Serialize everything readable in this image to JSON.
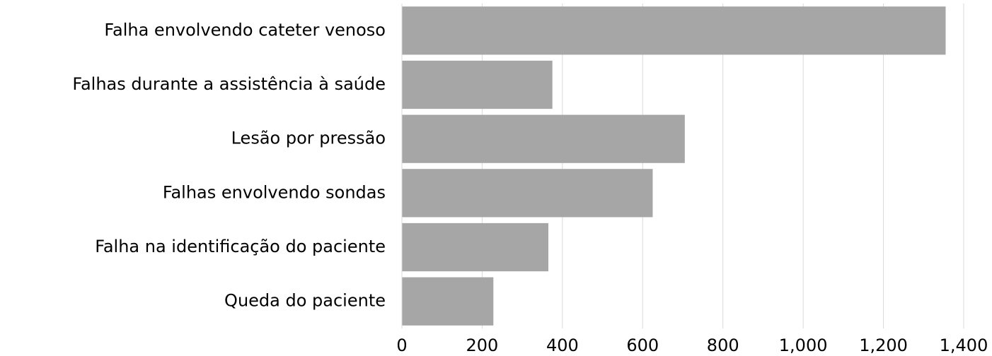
{
  "chart_data": {
    "type": "bar",
    "orientation": "horizontal",
    "categories": [
      "Falha envolvendo cateter venoso",
      "Falhas durante a assistência à saúde",
      "Lesão por pressão",
      "Falhas envolvendo sondas",
      "Falha na identificação do paciente",
      "Queda do paciente"
    ],
    "values": [
      1355,
      375,
      705,
      625,
      365,
      228
    ],
    "color": "#a6a6a6",
    "xlim": [
      0,
      1400
    ],
    "xticks": [
      0,
      200,
      400,
      600,
      800,
      {
        "value": 1000,
        "label": "1,000"
      },
      {
        "value": 1200,
        "label": "1,200"
      },
      {
        "value": 1400,
        "label": "1,400"
      }
    ],
    "grid": true
  }
}
